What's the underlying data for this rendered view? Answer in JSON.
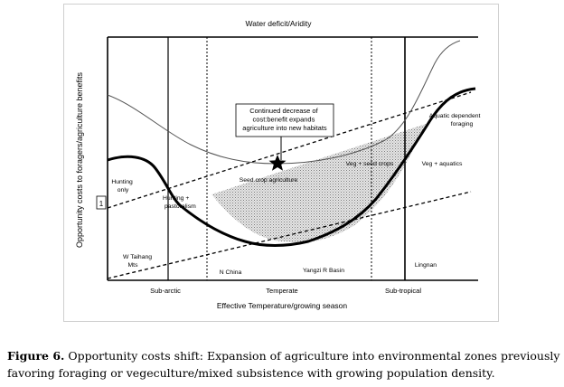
{
  "figure": {
    "top_label": "Water deficit/Aridity",
    "y_axis_label": "Opportunity costs to foragers/agriculture benefits",
    "x_axis_label": "Effective Temperature/growing season",
    "y_marker": "1",
    "x_zones": [
      "Sub-arctic",
      "Temperate",
      "Sub-tropical"
    ],
    "callout": [
      "Continued decrease of",
      "cost:benefit expands",
      "agriculture into new habitats"
    ],
    "region_labels": {
      "hunting_only": [
        "Hunting",
        "only"
      ],
      "hunting_pastoralism": [
        "Hunting +",
        "pastoralism"
      ],
      "seed_crop": "Seed crop agriculture",
      "veg_seed": "Veg + seed crops",
      "veg_aquatics": "Veg + aquatics",
      "aquatic_foraging": [
        "Aquatic dependent",
        "foraging"
      ]
    },
    "place_labels": {
      "w_taihang": [
        "W Taihang",
        "Mts"
      ],
      "n_china": "N China",
      "yangzi": "Yangzi R Basin",
      "lingnan": "Lingnan"
    }
  },
  "caption": {
    "label": "Figure 6.",
    "text": " Opportunity costs shift: Expansion of agriculture into environmental zones previously favoring foraging or vegeculture/mixed subsistence with growing population density."
  }
}
